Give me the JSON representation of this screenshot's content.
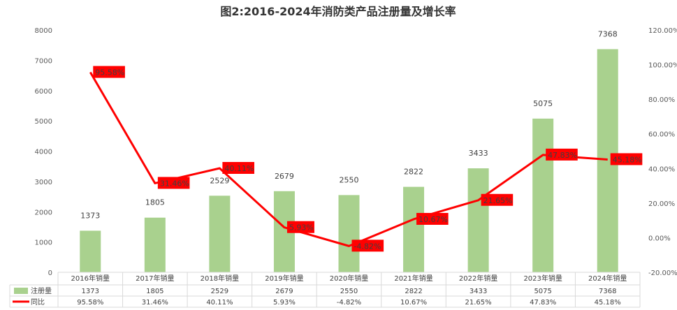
{
  "chart_data": {
    "type": "bar",
    "title": "图2:2016-2024年消防类产品注册量及增长率",
    "categories": [
      "2016年销量",
      "2017年销量",
      "2018年销量",
      "2019年销量",
      "2020年销量",
      "2021年销量",
      "2022年销量",
      "2023年销量",
      "2024年销量"
    ],
    "series": [
      {
        "name": "注册量",
        "type": "bar",
        "axis": "left",
        "color": "#a9d18e",
        "values": [
          1373,
          1805,
          2529,
          2679,
          2550,
          2822,
          3433,
          5075,
          7368
        ],
        "labels": [
          "1373",
          "1805",
          "2529",
          "2679",
          "2550",
          "2822",
          "3433",
          "5075",
          "7368"
        ]
      },
      {
        "name": "同比",
        "type": "line",
        "axis": "right",
        "color": "#ff0000",
        "values": [
          95.58,
          31.46,
          40.11,
          5.93,
          -4.82,
          10.67,
          21.65,
          47.83,
          45.18
        ],
        "labels": [
          "95.58%",
          "31.46%",
          "40.11%",
          "5.93%",
          "-4.82%",
          "10.67%",
          "21.65%",
          "47.83%",
          "45.18%"
        ]
      }
    ],
    "y_left": {
      "ylim": [
        0,
        8000
      ],
      "ticks": [
        "0",
        "1000",
        "2000",
        "3000",
        "4000",
        "5000",
        "6000",
        "7000",
        "8000"
      ]
    },
    "y_right": {
      "ylim": [
        -20,
        120
      ],
      "ticks": [
        "-20.00%",
        "0.00%",
        "20.00%",
        "40.00%",
        "60.00%",
        "80.00%",
        "100.00%",
        "120.00%"
      ]
    },
    "grid": false,
    "legend": "data-table-below",
    "data_table": {
      "rows": [
        {
          "label": "注册量",
          "values": [
            "1373",
            "1805",
            "2529",
            "2679",
            "2550",
            "2822",
            "3433",
            "5075",
            "7368"
          ]
        },
        {
          "label": "同比",
          "values": [
            "95.58%",
            "31.46%",
            "40.11%",
            "5.93%",
            "-4.82%",
            "10.67%",
            "21.65%",
            "47.83%",
            "45.18%"
          ]
        }
      ]
    }
  }
}
